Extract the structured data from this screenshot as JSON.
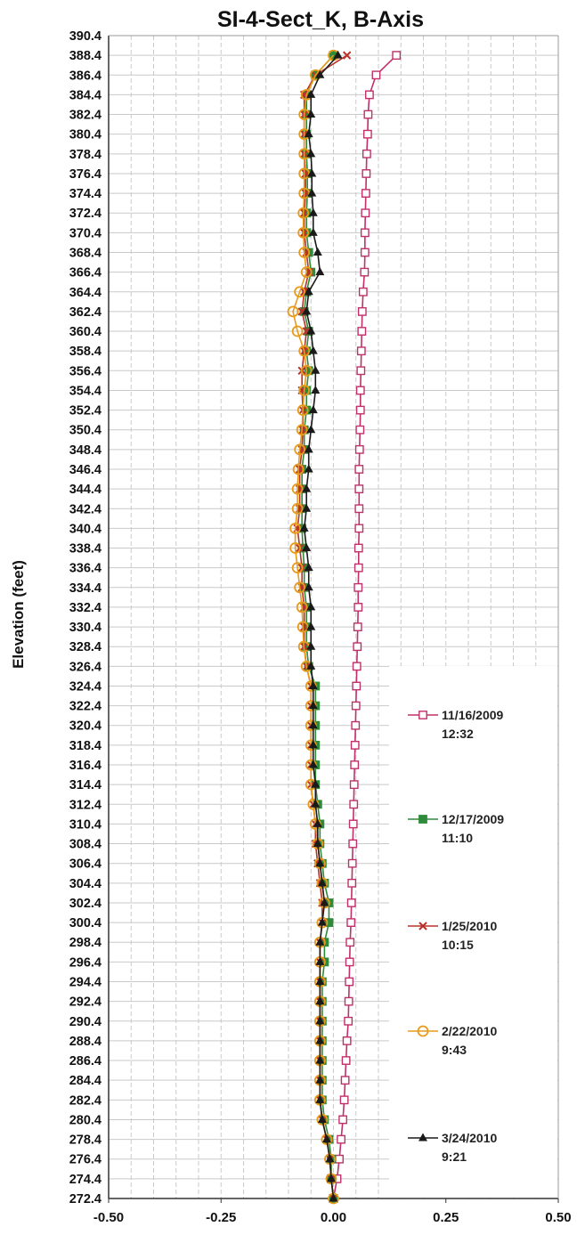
{
  "chart_data": {
    "type": "line",
    "title": "SI-4-Sect_K, B-Axis",
    "ylabel": "Elevation (feet)",
    "xlabel": "",
    "xlim": [
      -0.5,
      0.5
    ],
    "ylim": [
      272.4,
      390.4
    ],
    "x_ticks": [
      "-0.50",
      "-0.25",
      "0.00",
      "0.25",
      "0.50"
    ],
    "y": [
      388.4,
      386.4,
      384.4,
      382.4,
      380.4,
      378.4,
      376.4,
      374.4,
      372.4,
      370.4,
      368.4,
      366.4,
      364.4,
      362.4,
      360.4,
      358.4,
      356.4,
      354.4,
      352.4,
      350.4,
      348.4,
      346.4,
      344.4,
      342.4,
      340.4,
      338.4,
      336.4,
      334.4,
      332.4,
      330.4,
      328.4,
      326.4,
      324.4,
      322.4,
      320.4,
      318.4,
      316.4,
      314.4,
      312.4,
      310.4,
      308.4,
      306.4,
      304.4,
      302.4,
      300.4,
      298.4,
      296.4,
      294.4,
      292.4,
      290.4,
      288.4,
      286.4,
      284.4,
      282.4,
      280.4,
      278.4,
      276.4,
      274.4,
      272.4
    ],
    "grid": true,
    "legend": "right",
    "series": [
      {
        "name": "11/16/2009\n12:32",
        "color": "#c0306a",
        "marker": "square",
        "x": [
          0.14,
          0.095,
          0.08,
          0.077,
          0.076,
          0.074,
          0.073,
          0.072,
          0.071,
          0.07,
          0.07,
          0.069,
          0.066,
          0.064,
          0.063,
          0.062,
          0.061,
          0.06,
          0.06,
          0.059,
          0.058,
          0.057,
          0.057,
          0.057,
          0.057,
          0.056,
          0.056,
          0.055,
          0.055,
          0.054,
          0.053,
          0.052,
          0.051,
          0.05,
          0.049,
          0.048,
          0.047,
          0.046,
          0.045,
          0.044,
          0.043,
          0.042,
          0.041,
          0.04,
          0.039,
          0.037,
          0.036,
          0.035,
          0.034,
          0.033,
          0.03,
          0.028,
          0.026,
          0.024,
          0.021,
          0.017,
          0.013,
          0.008,
          0.0
        ]
      },
      {
        "name": "12/17/2009\n11:10",
        "color": "#2e8b3a",
        "marker": "square",
        "x": [
          0.0,
          -0.04,
          -0.06,
          -0.06,
          -0.06,
          -0.06,
          -0.058,
          -0.058,
          -0.06,
          -0.06,
          -0.055,
          -0.05,
          -0.06,
          -0.065,
          -0.055,
          -0.06,
          -0.055,
          -0.06,
          -0.06,
          -0.065,
          -0.065,
          -0.07,
          -0.07,
          -0.07,
          -0.07,
          -0.068,
          -0.065,
          -0.065,
          -0.06,
          -0.06,
          -0.06,
          -0.055,
          -0.04,
          -0.04,
          -0.04,
          -0.04,
          -0.04,
          -0.04,
          -0.035,
          -0.03,
          -0.03,
          -0.025,
          -0.02,
          -0.01,
          -0.01,
          -0.02,
          -0.02,
          -0.025,
          -0.025,
          -0.025,
          -0.025,
          -0.025,
          -0.025,
          -0.025,
          -0.02,
          -0.01,
          -0.005,
          -0.005,
          0.0
        ]
      },
      {
        "name": "1/25/2010\n10:15",
        "color": "#b8322a",
        "marker": "x",
        "x": [
          0.03,
          -0.04,
          -0.065,
          -0.065,
          -0.065,
          -0.065,
          -0.062,
          -0.062,
          -0.065,
          -0.065,
          -0.06,
          -0.055,
          -0.065,
          -0.07,
          -0.06,
          -0.065,
          -0.07,
          -0.07,
          -0.068,
          -0.068,
          -0.07,
          -0.075,
          -0.075,
          -0.075,
          -0.08,
          -0.075,
          -0.07,
          -0.07,
          -0.065,
          -0.065,
          -0.065,
          -0.06,
          -0.05,
          -0.05,
          -0.05,
          -0.05,
          -0.05,
          -0.05,
          -0.045,
          -0.04,
          -0.04,
          -0.035,
          -0.03,
          -0.025,
          -0.025,
          -0.03,
          -0.03,
          -0.03,
          -0.03,
          -0.03,
          -0.03,
          -0.03,
          -0.03,
          -0.03,
          -0.025,
          -0.015,
          -0.008,
          -0.005,
          0.0
        ]
      },
      {
        "name": "2/22/2010\n9:43",
        "color": "#e89a1a",
        "marker": "circle",
        "x": [
          0.0,
          -0.04,
          -0.06,
          -0.065,
          -0.065,
          -0.065,
          -0.065,
          -0.065,
          -0.067,
          -0.067,
          -0.065,
          -0.06,
          -0.075,
          -0.09,
          -0.08,
          -0.065,
          -0.06,
          -0.065,
          -0.068,
          -0.07,
          -0.075,
          -0.078,
          -0.08,
          -0.08,
          -0.085,
          -0.085,
          -0.08,
          -0.075,
          -0.07,
          -0.068,
          -0.066,
          -0.06,
          -0.05,
          -0.05,
          -0.05,
          -0.05,
          -0.05,
          -0.05,
          -0.045,
          -0.04,
          -0.035,
          -0.03,
          -0.025,
          -0.02,
          -0.025,
          -0.03,
          -0.03,
          -0.03,
          -0.03,
          -0.03,
          -0.03,
          -0.03,
          -0.03,
          -0.03,
          -0.025,
          -0.015,
          -0.008,
          -0.005,
          0.0
        ]
      },
      {
        "name": "3/24/2010\n9:21",
        "color": "#1a1a1a",
        "marker": "triangle",
        "x": [
          0.01,
          -0.03,
          -0.05,
          -0.05,
          -0.055,
          -0.05,
          -0.048,
          -0.048,
          -0.045,
          -0.045,
          -0.035,
          -0.03,
          -0.055,
          -0.06,
          -0.05,
          -0.045,
          -0.04,
          -0.04,
          -0.045,
          -0.05,
          -0.055,
          -0.055,
          -0.06,
          -0.06,
          -0.065,
          -0.06,
          -0.055,
          -0.055,
          -0.05,
          -0.05,
          -0.05,
          -0.05,
          -0.045,
          -0.045,
          -0.045,
          -0.045,
          -0.045,
          -0.04,
          -0.04,
          -0.035,
          -0.035,
          -0.03,
          -0.025,
          -0.02,
          -0.025,
          -0.03,
          -0.03,
          -0.03,
          -0.03,
          -0.03,
          -0.03,
          -0.03,
          -0.03,
          -0.03,
          -0.025,
          -0.015,
          -0.008,
          -0.005,
          0.0
        ]
      }
    ]
  }
}
